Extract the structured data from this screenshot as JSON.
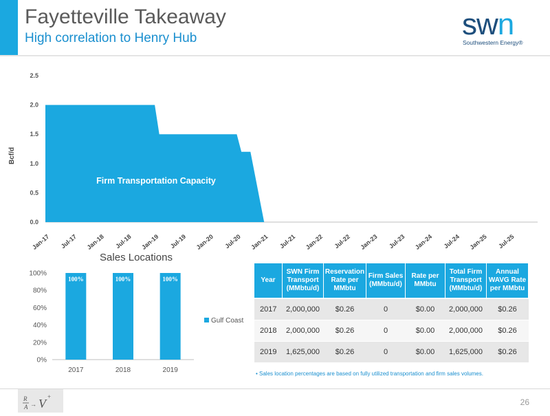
{
  "header": {
    "title": "Fayetteville Takeaway",
    "subtitle": "High correlation to Henry Hub",
    "logo_text": "swn",
    "logo_tagline": "Southwestern Energy®"
  },
  "colors": {
    "accent": "#1ba8e0",
    "brand_dark": "#1d4e7c",
    "table_header": "#1ba8e0"
  },
  "chart_data": [
    {
      "type": "area",
      "title": "",
      "ylabel": "Bcf/d",
      "ylim": [
        0,
        2.5
      ],
      "yticks": [
        "0.0",
        "0.5",
        "1.0",
        "1.5",
        "2.0",
        "2.5"
      ],
      "xticks": [
        "Jan-17",
        "Jul-17",
        "Jan-18",
        "Jul-18",
        "Jan-19",
        "Jul-19",
        "Jan-20",
        "Jul-20",
        "Jan-21",
        "Jul-21",
        "Jan-22",
        "Jul-22",
        "Jan-23",
        "Jul-23",
        "Jan-24",
        "Jul-24",
        "Jan-25",
        "Jul-25"
      ],
      "series": [
        {
          "name": "Firm Transportation Capacity",
          "points": [
            [
              "Jan-17",
              2.0
            ],
            [
              "Jan-19",
              2.0
            ],
            [
              "Feb-19",
              1.5
            ],
            [
              "Jul-20",
              1.5
            ],
            [
              "Aug-20",
              1.2
            ],
            [
              "Oct-20",
              1.2
            ],
            [
              "Jan-21",
              0.0
            ]
          ]
        }
      ],
      "annotation": "Firm Transportation Capacity"
    },
    {
      "type": "bar",
      "title": "Sales Locations",
      "categories": [
        "2017",
        "2018",
        "2019"
      ],
      "yticks": [
        "0%",
        "20%",
        "40%",
        "60%",
        "80%",
        "100%"
      ],
      "ylim": [
        0,
        100
      ],
      "series": [
        {
          "name": "Gulf Coast",
          "values": [
            100,
            100,
            100
          ],
          "labels": [
            "100%",
            "100%",
            "100%"
          ]
        }
      ],
      "legend": "right"
    }
  ],
  "table": {
    "headers": [
      "Year",
      "SWN Firm Transport (MMbtu/d)",
      "Reservation Rate per MMbtu",
      "Firm Sales (MMbtu/d)",
      "Rate per MMbtu",
      "Total Firm Transport (MMbtu/d)",
      "Annual WAVG Rate per MMbtu"
    ],
    "rows": [
      [
        "2017",
        "2,000,000",
        "$0.26",
        "0",
        "$0.00",
        "2,000,000",
        "$0.26"
      ],
      [
        "2018",
        "2,000,000",
        "$0.26",
        "0",
        "$0.00",
        "2,000,000",
        "$0.26"
      ],
      [
        "2019",
        "1,625,000",
        "$0.26",
        "0",
        "$0.00",
        "1,625,000",
        "$0.26"
      ]
    ]
  },
  "footnote": "•   Sales location percentages are based on fully utilized transportation and firm sales volumes.",
  "page_number": "26"
}
